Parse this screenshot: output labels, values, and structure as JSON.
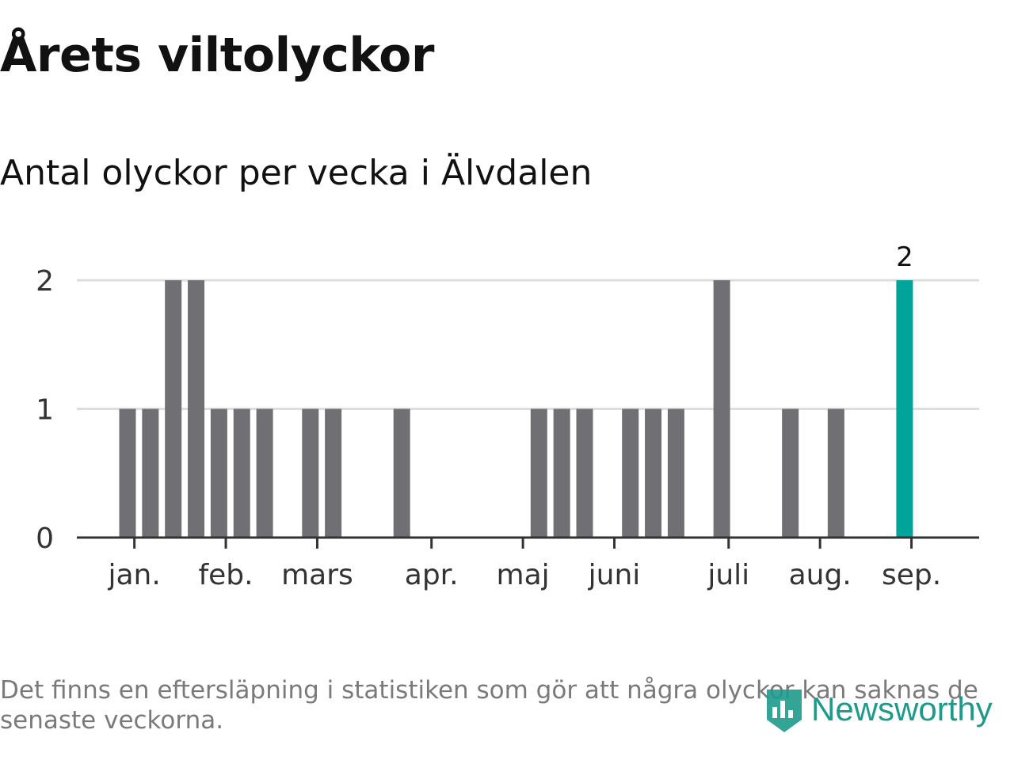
{
  "title": "Årets viltolyckor",
  "subtitle": "Antal olyckor per vecka i Älvdalen",
  "footnote": "Det finns en eftersläpning i statistiken som gör att några olyckor kan saknas de senaste veckorna.",
  "logo_text": "Newsworthy",
  "colors": {
    "bar": "#706f74",
    "highlight": "#00a49a",
    "grid": "#dddddd",
    "axis": "#333333",
    "text": "#111111"
  },
  "chart_data": {
    "type": "bar",
    "x_unit": "week",
    "weeks": [
      1,
      2,
      3,
      4,
      5,
      6,
      7,
      8,
      9,
      10,
      11,
      12,
      13,
      14,
      15,
      16,
      17,
      18,
      19,
      20,
      21,
      22,
      23,
      24,
      25,
      26,
      27,
      28,
      29,
      30,
      31,
      32,
      33,
      34,
      35,
      36,
      37,
      38
    ],
    "values": [
      1,
      1,
      2,
      2,
      1,
      1,
      1,
      0,
      1,
      1,
      0,
      0,
      1,
      0,
      0,
      0,
      0,
      0,
      1,
      1,
      1,
      0,
      1,
      1,
      1,
      0,
      2,
      0,
      0,
      1,
      0,
      1,
      0,
      0,
      2,
      0,
      0,
      0
    ],
    "highlight_index": 34,
    "highlight_label": "2",
    "month_labels": [
      "jan.",
      "feb.",
      "mars",
      "apr.",
      "maj",
      "juni",
      "juli",
      "aug.",
      "sep."
    ],
    "month_ticks": [
      1.3,
      5.3,
      9.3,
      14.3,
      18.3,
      22.3,
      27.3,
      31.3,
      35.3
    ],
    "y_ticks": [
      "0",
      "1",
      "2"
    ],
    "ylim": [
      0,
      2
    ],
    "grid": true
  }
}
